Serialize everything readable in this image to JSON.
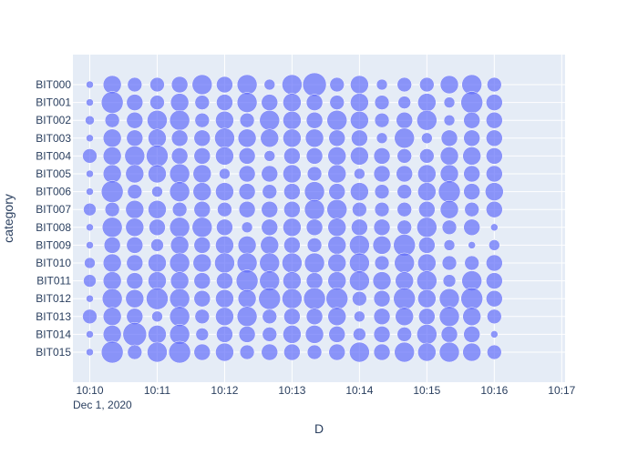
{
  "chart_data": {
    "type": "scatter",
    "title": "",
    "xlabel": "D",
    "ylabel": "category",
    "x_tick_labels": [
      "10:10",
      "10:11",
      "10:12",
      "10:13",
      "10:14",
      "10:15",
      "10:16",
      "10:17"
    ],
    "x_date_label": "Dec 1, 2020",
    "x_start": "2020-12-01 10:10:00",
    "x_step_seconds": 20,
    "xlim_minutes": [
      -0.25,
      7.05
    ],
    "categories": [
      "BIT000",
      "BIT001",
      "BIT002",
      "BIT003",
      "BIT004",
      "BIT005",
      "BIT006",
      "BIT007",
      "BIT008",
      "BIT009",
      "BIT010",
      "BIT011",
      "BIT012",
      "BIT013",
      "BIT014",
      "BIT015"
    ],
    "grid": true,
    "marker_color": "#636efa",
    "marker_opacity": 0.7,
    "sizes": [
      [
        4,
        10,
        8,
        8,
        9,
        11,
        9,
        11,
        6,
        11,
        13,
        8,
        10,
        6,
        8,
        8,
        10,
        11,
        8
      ],
      [
        4,
        12,
        9,
        8,
        10,
        8,
        9,
        11,
        9,
        10,
        9,
        8,
        10,
        8,
        7,
        10,
        6,
        12,
        9
      ],
      [
        5,
        8,
        9,
        11,
        11,
        8,
        10,
        8,
        11,
        10,
        9,
        11,
        10,
        8,
        9,
        11,
        6,
        9,
        9
      ],
      [
        4,
        10,
        9,
        10,
        9,
        9,
        11,
        10,
        10,
        10,
        10,
        9,
        9,
        6,
        11,
        6,
        9,
        9,
        9
      ],
      [
        8,
        10,
        11,
        12,
        9,
        9,
        10,
        9,
        6,
        9,
        9,
        10,
        10,
        9,
        8,
        8,
        10,
        10,
        9
      ],
      [
        4,
        10,
        10,
        10,
        11,
        10,
        6,
        9,
        9,
        10,
        8,
        10,
        6,
        9,
        9,
        10,
        10,
        9,
        9
      ],
      [
        4,
        12,
        8,
        6,
        11,
        10,
        10,
        9,
        8,
        9,
        11,
        9,
        10,
        8,
        8,
        10,
        12,
        9,
        10
      ],
      [
        7,
        8,
        10,
        10,
        8,
        9,
        8,
        9,
        9,
        9,
        11,
        11,
        8,
        8,
        8,
        9,
        10,
        8,
        9
      ],
      [
        4,
        11,
        10,
        9,
        11,
        11,
        9,
        6,
        9,
        10,
        9,
        10,
        9,
        9,
        8,
        11,
        8,
        9,
        4
      ],
      [
        4,
        9,
        9,
        7,
        10,
        9,
        10,
        10,
        10,
        9,
        8,
        10,
        11,
        10,
        12,
        9,
        6,
        4,
        6
      ],
      [
        6,
        10,
        9,
        10,
        11,
        10,
        11,
        11,
        11,
        11,
        11,
        10,
        11,
        8,
        11,
        10,
        8,
        8,
        9
      ],
      [
        7,
        10,
        9,
        10,
        10,
        9,
        9,
        12,
        11,
        10,
        9,
        10,
        11,
        10,
        10,
        11,
        7,
        11,
        9
      ],
      [
        4,
        11,
        10,
        12,
        11,
        9,
        10,
        10,
        12,
        11,
        12,
        12,
        8,
        9,
        12,
        10,
        11,
        12,
        9
      ],
      [
        8,
        10,
        9,
        6,
        11,
        8,
        10,
        11,
        8,
        9,
        9,
        10,
        6,
        9,
        10,
        9,
        11,
        10,
        8
      ],
      [
        4,
        10,
        13,
        10,
        11,
        7,
        9,
        9,
        8,
        10,
        10,
        9,
        7,
        9,
        8,
        11,
        9,
        9,
        4
      ],
      [
        4,
        12,
        8,
        11,
        12,
        9,
        10,
        8,
        9,
        9,
        8,
        9,
        11,
        9,
        11,
        10,
        11,
        10,
        8
      ]
    ]
  }
}
